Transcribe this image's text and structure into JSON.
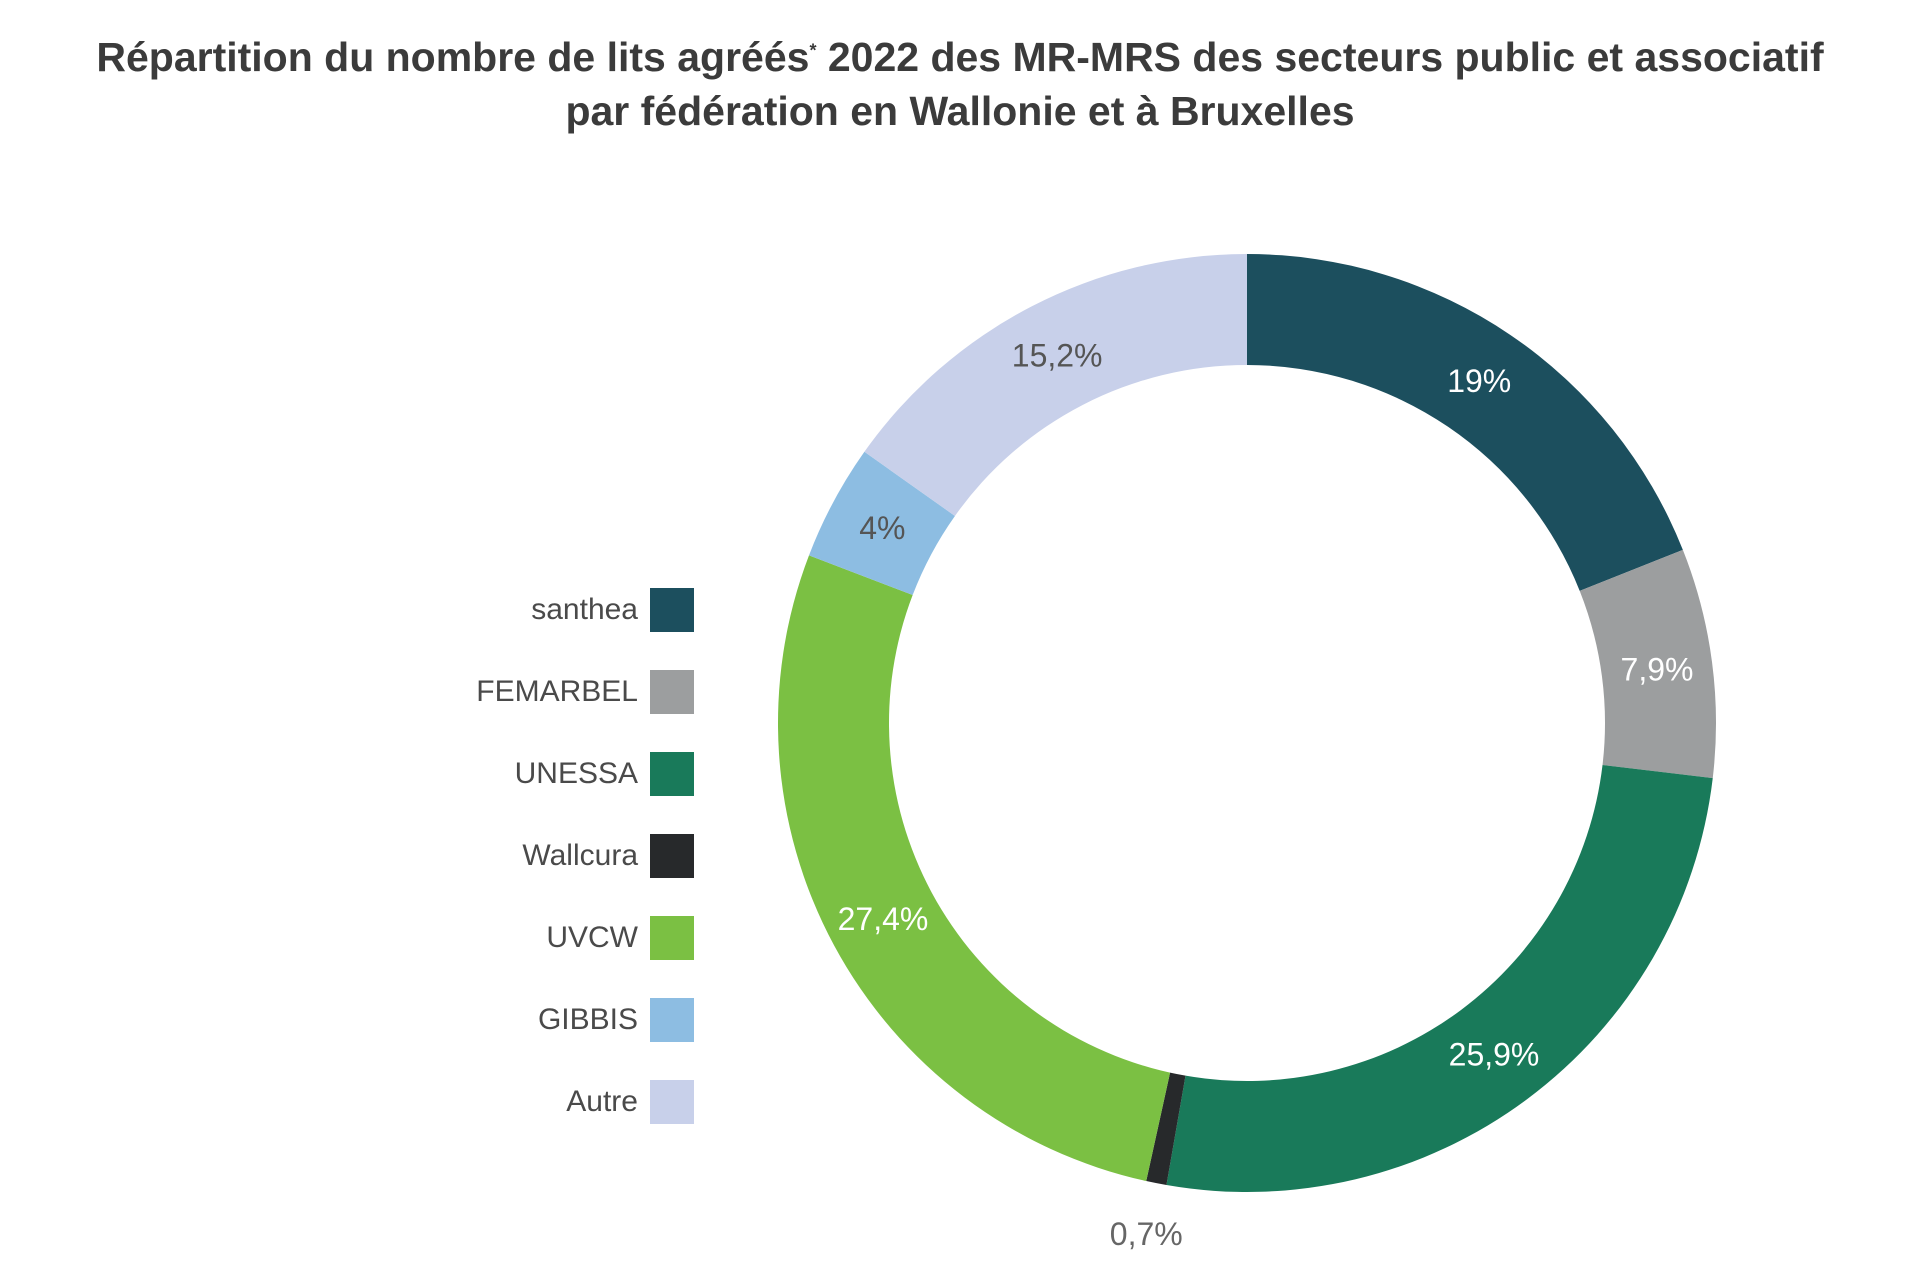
{
  "title": {
    "line1_main": "Répartition du nombre de lits agréés",
    "line1_sup": "*",
    "line1_rest": " 2022 des MR-MRS des secteurs public et associatif",
    "line2": "par fédération en Wallonie et à Bruxelles"
  },
  "chart_data": {
    "type": "pie",
    "donut": true,
    "categories": [
      "santhea",
      "FEMARBEL",
      "UNESSA",
      "Wallcura",
      "UVCW",
      "GIBBIS",
      "Autre"
    ],
    "values": [
      19,
      7.9,
      25.9,
      0.7,
      27.4,
      4,
      15.2
    ],
    "labels": [
      "19%",
      "7,9%",
      "25,9%",
      "0,7%",
      "27,4%",
      "4%",
      "15,2%"
    ],
    "colors": [
      "#1c4f5e",
      "#9c9e9f",
      "#197a5a",
      "#27292b",
      "#7bc043",
      "#8dbde2",
      "#c8d0ea"
    ],
    "label_colors": [
      "#ffffff",
      "#ffffff",
      "#ffffff",
      "#666666",
      "#ffffff",
      "#555555",
      "#555555"
    ],
    "legend_position": "left",
    "start": "top, clockwise"
  }
}
